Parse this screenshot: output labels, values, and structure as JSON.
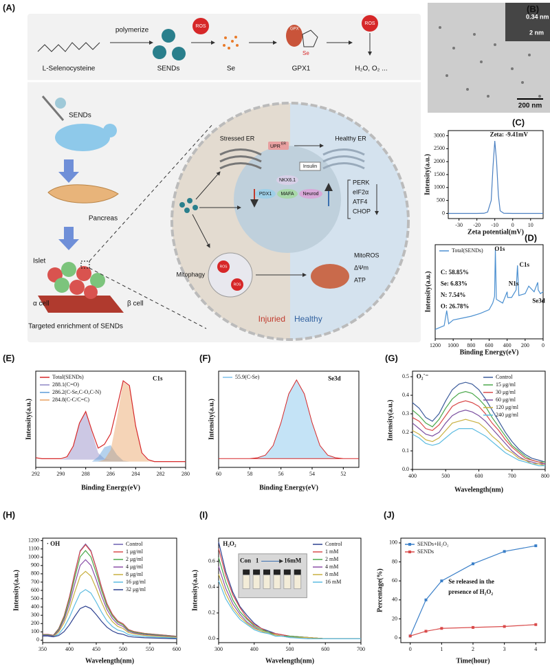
{
  "diagram": {
    "panel": "(A)",
    "synthesis": [
      "L-Selenocysteine",
      "polymerize",
      "SENDs",
      "Se",
      "GPX1",
      "H₂O, O₂ ..."
    ],
    "ros": "ROS",
    "se_mark": "Se",
    "gpx_mark": "GPX",
    "left": [
      "SENDs",
      "Pancreas",
      "Islet",
      "α cell",
      "β cell",
      "Targeted enrichment of SENDs"
    ],
    "cell": [
      "Stressed ER",
      "UPR",
      "ER",
      "Healthy ER",
      "Insulin",
      "NKX6.1",
      "PDX1",
      "MAFA",
      "Neurod",
      "Mitophagy",
      "Injuried",
      "Healthy"
    ],
    "markers": [
      "PERK",
      "eIF2α",
      "ATF4",
      "CHOP"
    ],
    "mito": [
      "MitoROS",
      "ΔΨm",
      "ATP"
    ]
  },
  "tem": {
    "panel": "(B)",
    "lattice": "0.34 nm",
    "inset_scale": "2 nm",
    "scale": "200 nm"
  },
  "chart_data": [
    {
      "type": "line",
      "panel": "(C)",
      "xlabel": "Zeta potential(mV)",
      "ylabel": "Intensity(a.u.)",
      "annotations": [
        "Zeta: -9.41mV"
      ],
      "x": [
        -36,
        -20,
        -16,
        -14,
        -12,
        -11,
        -10,
        -9,
        -8,
        -7,
        -5,
        0,
        17
      ],
      "series": [
        {
          "color": "#4a7fc1",
          "values": [
            0,
            0,
            5,
            50,
            500,
            1800,
            2800,
            2000,
            700,
            100,
            5,
            0,
            0
          ]
        }
      ],
      "xlim": [
        -36,
        17
      ],
      "ylim": [
        -200,
        3200
      ],
      "xticks": [
        -30,
        -20,
        -10,
        0,
        10
      ],
      "yticks": [
        0,
        500,
        1000,
        1500,
        2000,
        2500,
        3000
      ]
    },
    {
      "type": "line",
      "panel": "(D)",
      "xlabel": "Binding Energy(eV)",
      "ylabel": "Intensity(a.u.)",
      "legend": "upper left",
      "annotations": [
        "C: 58.85%",
        "Se: 6.83%",
        "N: 7.54%",
        "O: 26.78%",
        "O1s",
        "N1s",
        "C1s",
        "Se3d"
      ],
      "x": [
        1200,
        1100,
        1072,
        1050,
        1000,
        900,
        800,
        700,
        600,
        560,
        540,
        531,
        520,
        450,
        400,
        395,
        350,
        300,
        285,
        270,
        200,
        160,
        100,
        60,
        55,
        30,
        0
      ],
      "series": [
        {
          "name": "Total(SENDs)",
          "color": "#4a8fd0",
          "values": [
            10,
            14,
            30,
            16,
            20,
            22,
            24,
            27,
            31,
            38,
            45,
            95,
            42,
            38,
            50,
            44,
            44,
            52,
            78,
            46,
            48,
            56,
            50,
            60,
            52,
            48,
            50
          ]
        }
      ],
      "xlim": [
        1200,
        0
      ],
      "ylim": [
        0,
        100
      ],
      "xticks": [
        1200,
        1000,
        800,
        600,
        400,
        200,
        0
      ]
    },
    {
      "type": "line",
      "panel": "(E)",
      "xlabel": "Binding Energy(eV)",
      "ylabel": "Intensity(a.u.)",
      "legend": "upper left",
      "annotations": [
        "C1s"
      ],
      "x": [
        292,
        291.5,
        291,
        290.5,
        290,
        289.5,
        289,
        288.5,
        288,
        287.5,
        287,
        286.5,
        286,
        285.5,
        285,
        284.5,
        284,
        283.5,
        283,
        282.5,
        282,
        281.5,
        281,
        280.5,
        280
      ],
      "series": [
        {
          "name": "Total(SENDs)",
          "color": "#d62728",
          "values": [
            10,
            9,
            9,
            9,
            9,
            11,
            22,
            46,
            58,
            38,
            20,
            24,
            35,
            62,
            90,
            85,
            43,
            15,
            8,
            6,
            6,
            6,
            6,
            6,
            6
          ]
        },
        {
          "name": "288.1(C=O)",
          "color": "#8e86c4",
          "fill": true,
          "values": [
            8,
            8,
            8,
            8,
            8,
            10,
            21,
            46,
            57,
            36,
            15,
            9,
            8,
            8,
            8,
            8,
            8,
            8,
            8,
            8,
            8,
            8,
            8,
            8,
            8
          ]
        },
        {
          "name": "286.2(C-Se,C-O,C-N)",
          "color": "#5a9bd8",
          "fill": true,
          "values": [
            6,
            6,
            6,
            6,
            6,
            6,
            6,
            6,
            6,
            6,
            11,
            21,
            23,
            13,
            7,
            6,
            6,
            6,
            6,
            6,
            6,
            6,
            6,
            6,
            6
          ]
        },
        {
          "name": "284.8(C-C/C=C)",
          "color": "#e8a060",
          "fill": true,
          "values": [
            6,
            6,
            6,
            6,
            6,
            6,
            6,
            6,
            6,
            6,
            6,
            8,
            18,
            51,
            89,
            84,
            42,
            14,
            7,
            6,
            6,
            6,
            6,
            6,
            6
          ]
        }
      ],
      "xlim": [
        292,
        280
      ],
      "ylim": [
        0,
        100
      ],
      "xticks": [
        292,
        290,
        288,
        286,
        284,
        282,
        280
      ]
    },
    {
      "type": "line",
      "panel": "(F)",
      "xlabel": "Binding Energy(eV)",
      "ylabel": "Intensity(a.u.)",
      "legend": "upper left",
      "annotations": [
        "Se3d"
      ],
      "x": [
        60,
        59.5,
        59,
        58.5,
        58,
        57.5,
        57,
        56.5,
        56,
        55.5,
        55,
        54.5,
        54,
        53.5,
        53,
        52.5,
        52,
        51.5,
        51
      ],
      "series": [
        {
          "name": "55.9(C-Se)",
          "color": "#7cc0ea",
          "fill": true,
          "stroke": "#d62728",
          "values": [
            10,
            10,
            10,
            10,
            10,
            11,
            14,
            25,
            51,
            84,
            100,
            84,
            51,
            25,
            14,
            11,
            10,
            10,
            10
          ]
        }
      ],
      "xlim": [
        60,
        51
      ],
      "ylim": [
        0,
        110
      ],
      "xticks": [
        60,
        58,
        56,
        54,
        52
      ]
    },
    {
      "type": "line",
      "panel": "(G)",
      "xlabel": "Wavelength(nm)",
      "ylabel": "Intensity(a.u.)",
      "legend": "upper right",
      "annotations": [
        "O₂˙⁻"
      ],
      "x": [
        400,
        420,
        440,
        460,
        480,
        500,
        520,
        540,
        560,
        580,
        600,
        620,
        640,
        660,
        680,
        700,
        720,
        740,
        760,
        780,
        800
      ],
      "series": [
        {
          "name": "Control",
          "color": "#3a5a9a",
          "values": [
            0.36,
            0.33,
            0.28,
            0.26,
            0.3,
            0.37,
            0.43,
            0.46,
            0.47,
            0.46,
            0.43,
            0.38,
            0.32,
            0.26,
            0.2,
            0.15,
            0.11,
            0.08,
            0.06,
            0.05,
            0.04
          ]
        },
        {
          "name": "15 μg/ml",
          "color": "#4aa84a",
          "values": [
            0.32,
            0.29,
            0.25,
            0.23,
            0.27,
            0.33,
            0.38,
            0.41,
            0.42,
            0.41,
            0.38,
            0.34,
            0.28,
            0.23,
            0.18,
            0.13,
            0.1,
            0.07,
            0.05,
            0.04,
            0.04
          ]
        },
        {
          "name": "30 μg/ml",
          "color": "#d94a4a",
          "values": [
            0.28,
            0.26,
            0.22,
            0.21,
            0.24,
            0.29,
            0.34,
            0.36,
            0.37,
            0.36,
            0.34,
            0.3,
            0.25,
            0.21,
            0.16,
            0.12,
            0.09,
            0.06,
            0.05,
            0.04,
            0.03
          ]
        },
        {
          "name": "60 μg/ml",
          "color": "#7b4fa0",
          "values": [
            0.25,
            0.22,
            0.19,
            0.18,
            0.2,
            0.25,
            0.29,
            0.31,
            0.32,
            0.31,
            0.29,
            0.26,
            0.22,
            0.18,
            0.14,
            0.1,
            0.07,
            0.05,
            0.04,
            0.03,
            0.03
          ]
        },
        {
          "name": "120 μg/ml",
          "color": "#c8b040",
          "values": [
            0.21,
            0.19,
            0.16,
            0.15,
            0.17,
            0.21,
            0.25,
            0.26,
            0.27,
            0.26,
            0.25,
            0.22,
            0.18,
            0.15,
            0.11,
            0.09,
            0.06,
            0.05,
            0.03,
            0.03,
            0.02
          ]
        },
        {
          "name": "240 μg/ml",
          "color": "#5bbbe0",
          "values": [
            0.19,
            0.17,
            0.14,
            0.13,
            0.14,
            0.17,
            0.2,
            0.22,
            0.22,
            0.22,
            0.2,
            0.18,
            0.15,
            0.12,
            0.09,
            0.07,
            0.05,
            0.04,
            0.03,
            0.02,
            0.02
          ]
        }
      ],
      "xlim": [
        400,
        800
      ],
      "ylim": [
        0,
        0.53
      ],
      "xticks": [
        400,
        500,
        600,
        700,
        800
      ],
      "yticks": [
        {
          "value": 0,
          "label": "0.0"
        },
        0.1,
        0.2,
        0.3,
        0.4,
        0.5
      ]
    },
    {
      "type": "line",
      "panel": "(H)",
      "xlabel": "Wavelength(nm)",
      "ylabel": "Intensity(a.u.)",
      "legend": "upper right",
      "annotations": [
        "· OH"
      ],
      "x": [
        350,
        360,
        370,
        380,
        390,
        400,
        410,
        420,
        430,
        440,
        450,
        460,
        470,
        480,
        490,
        500,
        510,
        520,
        540,
        560,
        580,
        600
      ],
      "series": [
        {
          "name": "Control",
          "color": "#6a5fb0",
          "values": [
            70,
            70,
            58,
            139,
            290,
            522,
            812,
            1079,
            1160,
            1079,
            870,
            638,
            441,
            313,
            232,
            197,
            128,
            104,
            81,
            70,
            58,
            46
          ]
        },
        {
          "name": "1 μg/ml",
          "color": "#d94a4a",
          "values": [
            69,
            69,
            58,
            138,
            288,
            518,
            805,
            1070,
            1150,
            1070,
            863,
            633,
            437,
            311,
            230,
            196,
            127,
            104,
            81,
            69,
            58,
            46
          ]
        },
        {
          "name": "2 μg/ml",
          "color": "#4aa84a",
          "values": [
            65,
            65,
            54,
            130,
            270,
            486,
            756,
            1004,
            1080,
            1004,
            810,
            594,
            410,
            292,
            216,
            184,
            119,
            97,
            76,
            65,
            54,
            43
          ]
        },
        {
          "name": "4 μg/ml",
          "color": "#8a4fa8",
          "values": [
            58,
            58,
            49,
            116,
            243,
            437,
            679,
            902,
            970,
            902,
            728,
            534,
            369,
            262,
            194,
            165,
            107,
            87,
            68,
            58,
            49,
            39
          ]
        },
        {
          "name": "8 μg/ml",
          "color": "#c8b040",
          "values": [
            50,
            50,
            42,
            100,
            208,
            374,
            581,
            772,
            830,
            772,
            623,
            457,
            315,
            224,
            166,
            141,
            91,
            75,
            58,
            50,
            42,
            33
          ]
        },
        {
          "name": "16 μg/ml",
          "color": "#5bbbe0",
          "values": [
            50,
            50,
            40,
            73,
            153,
            275,
            427,
            567,
            610,
            567,
            458,
            336,
            232,
            165,
            122,
            104,
            67,
            55,
            43,
            37,
            31,
            24
          ]
        },
        {
          "name": "32 μg/ml",
          "color": "#2b3f8f",
          "values": [
            50,
            50,
            40,
            55,
            103,
            185,
            287,
            381,
            410,
            381,
            308,
            226,
            156,
            111,
            82,
            70,
            45,
            37,
            29,
            25,
            21,
            16
          ]
        }
      ],
      "xlim": [
        350,
        600
      ],
      "ylim": [
        -30,
        1230
      ],
      "xticks": [
        350,
        400,
        450,
        500,
        550,
        600
      ],
      "yticks": [
        0,
        100,
        200,
        300,
        400,
        500,
        600,
        700,
        800,
        900,
        1000,
        1100,
        1200
      ]
    },
    {
      "type": "line",
      "panel": "(I)",
      "xlabel": "Wavelength(nm)",
      "ylabel": "Intensity(a.u.)",
      "legend": "upper right",
      "annotations": [
        "H₂O₂",
        "Con",
        "1",
        "16mM"
      ],
      "x": [
        300,
        320,
        340,
        360,
        380,
        400,
        420,
        440,
        460,
        480,
        500,
        550,
        600,
        650,
        700
      ],
      "series": [
        {
          "name": "Control",
          "color": "#2b3f8f",
          "values": [
            0.75,
            0.52,
            0.36,
            0.25,
            0.18,
            0.12,
            0.08,
            0.06,
            0.04,
            0.03,
            0.02,
            0.01,
            0,
            0,
            0
          ]
        },
        {
          "name": "1 mM",
          "color": "#d94a4a",
          "values": [
            0.7,
            0.49,
            0.34,
            0.24,
            0.16,
            0.11,
            0.08,
            0.05,
            0.04,
            0.03,
            0.02,
            0.01,
            0,
            0,
            0
          ]
        },
        {
          "name": "2 mM",
          "color": "#4aa84a",
          "values": [
            0.63,
            0.44,
            0.3,
            0.21,
            0.15,
            0.1,
            0.07,
            0.05,
            0.03,
            0.02,
            0.02,
            0.01,
            0,
            0,
            0
          ]
        },
        {
          "name": "4 mM",
          "color": "#8a4fa8",
          "values": [
            0.56,
            0.39,
            0.27,
            0.19,
            0.13,
            0.09,
            0.06,
            0.04,
            0.03,
            0.02,
            0.01,
            0.01,
            0,
            0,
            0
          ]
        },
        {
          "name": "8 mM",
          "color": "#c8b040",
          "values": [
            0.5,
            0.35,
            0.24,
            0.17,
            0.12,
            0.08,
            0.06,
            0.04,
            0.03,
            0.02,
            0.01,
            0.01,
            0,
            0,
            0
          ]
        },
        {
          "name": "16 mM",
          "color": "#5bbbe0",
          "values": [
            0.45,
            0.31,
            0.22,
            0.15,
            0.11,
            0.07,
            0.05,
            0.04,
            0.02,
            0.02,
            0.01,
            0,
            0,
            0,
            0
          ]
        }
      ],
      "xlim": [
        300,
        700
      ],
      "ylim": [
        -0.03,
        0.78
      ],
      "xticks": [
        300,
        400,
        500,
        600,
        700
      ],
      "yticks": [
        {
          "value": 0,
          "label": "0.0"
        },
        0.2,
        0.4,
        0.6
      ]
    },
    {
      "type": "line",
      "panel": "(J)",
      "xlabel": "Time(hour)",
      "ylabel": "Percentage(%)",
      "legend": "upper left",
      "annotations": [
        "Se released in the",
        "presence of H₂O₂"
      ],
      "x": [
        0,
        0.5,
        1,
        2,
        3,
        4
      ],
      "series": [
        {
          "name": "SENDs+H₂O₂",
          "color": "#3a7fc8",
          "marker": "square",
          "values": [
            2,
            40,
            60,
            78,
            91,
            97
          ]
        },
        {
          "name": "SENDs",
          "color": "#d94a4a",
          "marker": "square",
          "values": [
            2,
            7,
            10,
            11,
            12,
            14
          ]
        }
      ],
      "xlim": [
        -0.3,
        4.3
      ],
      "ylim": [
        -5,
        105
      ],
      "xticks": [
        0,
        1,
        2,
        3,
        4
      ],
      "yticks": [
        0,
        20,
        40,
        60,
        80,
        100
      ]
    }
  ]
}
